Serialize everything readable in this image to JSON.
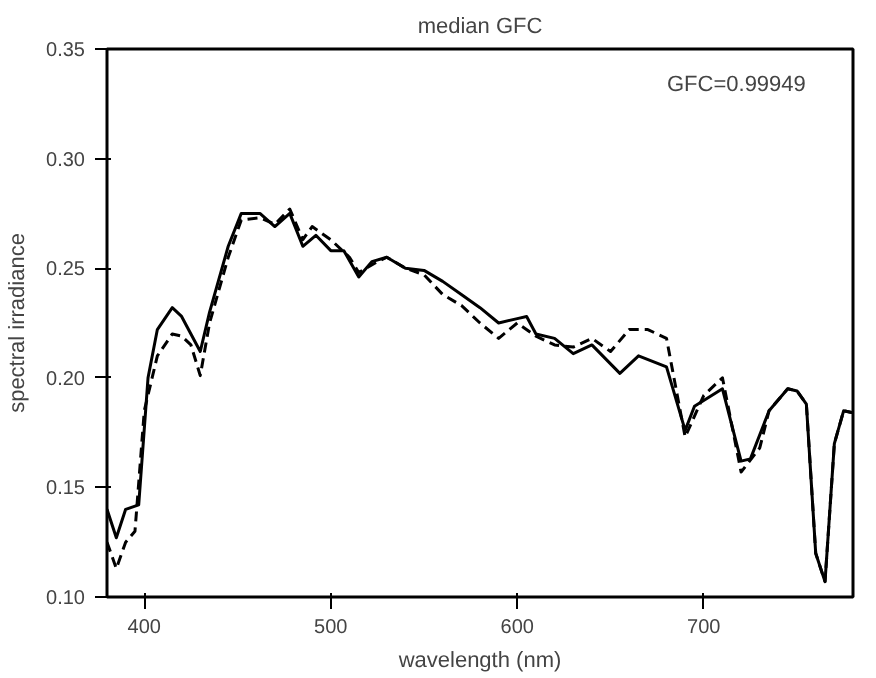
{
  "chart_data": {
    "type": "line",
    "title": "median GFC",
    "xlabel": "wavelength (nm)",
    "ylabel": "spectral irradiance",
    "annotations": [
      "GFC=0.99949"
    ],
    "xlim": [
      380,
      780
    ],
    "ylim": [
      0.1,
      0.35
    ],
    "xticks": [
      400,
      500,
      600,
      700
    ],
    "yticks": [
      {
        "value": 0.1,
        "label": "0.10"
      },
      {
        "value": 0.15,
        "label": "0.15"
      },
      {
        "value": 0.2,
        "label": "0.20"
      },
      {
        "value": 0.25,
        "label": "0.25"
      },
      {
        "value": 0.3,
        "label": "0.30"
      },
      {
        "value": 0.35,
        "label": "0.35"
      }
    ],
    "series": [
      {
        "color": "#000000",
        "line_style": "solid",
        "x": [
          380,
          385,
          390,
          397,
          402,
          407,
          415,
          420,
          425,
          430,
          435,
          445,
          452,
          462,
          470,
          478,
          485,
          492,
          500,
          507,
          515,
          522,
          530,
          540,
          550,
          560,
          570,
          580,
          590,
          600,
          605,
          610,
          620,
          630,
          640,
          655,
          665,
          680,
          690,
          695,
          710,
          720,
          725,
          735,
          745,
          750,
          755,
          760,
          765,
          770,
          775,
          780
        ],
        "values": [
          0.14,
          0.127,
          0.14,
          0.142,
          0.2,
          0.222,
          0.232,
          0.228,
          0.22,
          0.212,
          0.23,
          0.26,
          0.275,
          0.275,
          0.269,
          0.275,
          0.26,
          0.265,
          0.258,
          0.258,
          0.246,
          0.253,
          0.255,
          0.25,
          0.249,
          0.244,
          0.238,
          0.232,
          0.225,
          0.227,
          0.228,
          0.22,
          0.218,
          0.211,
          0.215,
          0.202,
          0.21,
          0.205,
          0.176,
          0.187,
          0.195,
          0.162,
          0.163,
          0.185,
          0.195,
          0.194,
          0.188,
          0.12,
          0.107,
          0.17,
          0.185,
          0.184
        ]
      },
      {
        "color": "#000000",
        "line_style": "dashed",
        "x": [
          380,
          385,
          390,
          395,
          400,
          407,
          415,
          420,
          425,
          430,
          435,
          445,
          452,
          462,
          470,
          478,
          485,
          490,
          500,
          510,
          515,
          525,
          530,
          540,
          550,
          560,
          570,
          580,
          590,
          600,
          610,
          620,
          630,
          640,
          650,
          660,
          670,
          680,
          690,
          700,
          710,
          720,
          730,
          735,
          745,
          750,
          755,
          760,
          765,
          770,
          775,
          780
        ],
        "values": [
          0.125,
          0.113,
          0.125,
          0.13,
          0.185,
          0.21,
          0.22,
          0.219,
          0.215,
          0.201,
          0.225,
          0.255,
          0.272,
          0.273,
          0.27,
          0.277,
          0.263,
          0.269,
          0.263,
          0.255,
          0.248,
          0.253,
          0.255,
          0.25,
          0.247,
          0.238,
          0.233,
          0.225,
          0.218,
          0.225,
          0.219,
          0.215,
          0.214,
          0.218,
          0.212,
          0.222,
          0.222,
          0.218,
          0.173,
          0.192,
          0.2,
          0.157,
          0.168,
          0.185,
          0.195,
          0.194,
          0.188,
          0.12,
          0.107,
          0.17,
          0.185,
          0.184
        ]
      }
    ]
  }
}
